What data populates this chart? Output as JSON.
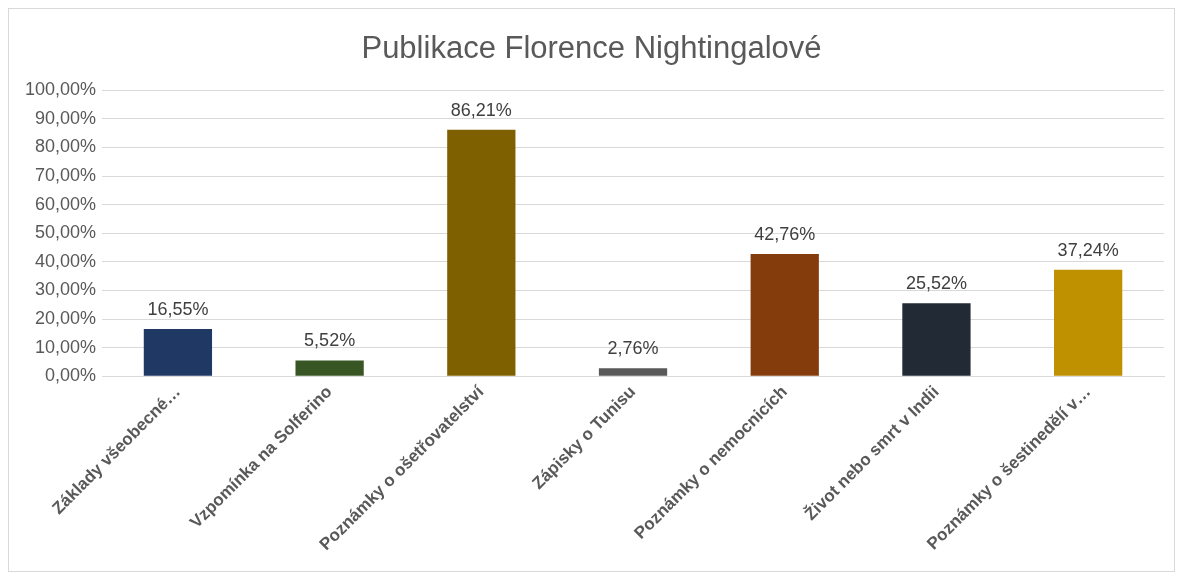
{
  "chart_data": {
    "type": "bar",
    "title": "Publikace Florence Nightingalové",
    "categories": [
      "Základy všeobecné…",
      "Vzpomínka na Solferino",
      "Poznámky o ošetřovatelství",
      "Zápisky o Tunisu",
      "Poznámky o nemocnicích",
      "Život nebo smrt v Indii",
      "Poznámky o šestinedělí v…"
    ],
    "values": [
      16.55,
      5.52,
      86.21,
      2.76,
      42.76,
      25.52,
      37.24
    ],
    "colors": [
      "#203864",
      "#375623",
      "#7f6000",
      "#595959",
      "#843c0c",
      "#222a35",
      "#bf9000"
    ],
    "value_labels": [
      "16,55%",
      "5,52%",
      "86,21%",
      "2,76%",
      "42,76%",
      "25,52%",
      "37,24%"
    ],
    "ylim": [
      0,
      100
    ],
    "yticks": [
      {
        "value": 0,
        "label": "0,00%"
      },
      {
        "value": 10,
        "label": "10,00%"
      },
      {
        "value": 20,
        "label": "20,00%"
      },
      {
        "value": 30,
        "label": "30,00%"
      },
      {
        "value": 40,
        "label": "40,00%"
      },
      {
        "value": 50,
        "label": "50,00%"
      },
      {
        "value": 60,
        "label": "60,00%"
      },
      {
        "value": 70,
        "label": "70,00%"
      },
      {
        "value": 80,
        "label": "80,00%"
      },
      {
        "value": 90,
        "label": "90,00%"
      },
      {
        "value": 100,
        "label": "100,00%"
      }
    ],
    "grid": "y",
    "legend": false
  }
}
